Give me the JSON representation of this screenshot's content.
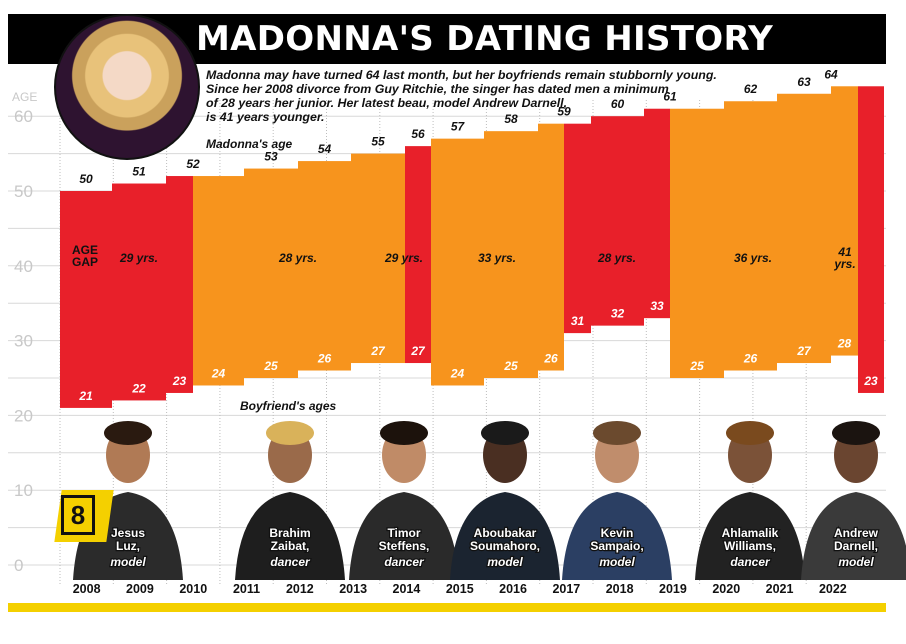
{
  "title": "MADONNA'S DATING HISTORY",
  "subtitle": "Madonna may have turned 64 last month, but her boyfriends remain stubbornly young.\nSince her 2008 divorce from Guy Ritchie, the singer has dated men a minimum\nof 28 years her junior. Her latest beau, model Andrew Darnell,\nis 41 years younger.",
  "badge_number": "8",
  "colors": {
    "red": "#e8202a",
    "orange": "#f7941d",
    "black": "#000000",
    "yellow": "#f4d000",
    "grid": "#d8d8d8"
  },
  "chart_data": {
    "type": "bar",
    "yaxis_label": "AGE",
    "yticks": [
      0,
      10,
      20,
      30,
      40,
      50,
      60
    ],
    "ylim": [
      0,
      65
    ],
    "years": [
      "2008",
      "2009",
      "2010",
      "2011",
      "2012",
      "2013",
      "2014",
      "2015",
      "2016",
      "2017",
      "2018",
      "2019",
      "2020",
      "2021",
      "2022"
    ],
    "madonna_label": "Madonna's age",
    "boyfriend_label": "Boyfriend's ages",
    "age_gap_label": "AGE\nGAP",
    "segments": [
      {
        "madonna_age": 50,
        "boyfriend_age": 21,
        "color": "red"
      },
      {
        "madonna_age": 51,
        "boyfriend_age": 22,
        "color": "red"
      },
      {
        "madonna_age": 52,
        "boyfriend_age": 23,
        "color": "red"
      },
      {
        "madonna_age": 52,
        "boyfriend_age": 24,
        "color": "orange"
      },
      {
        "madonna_age": 53,
        "boyfriend_age": 25,
        "color": "orange"
      },
      {
        "madonna_age": 54,
        "boyfriend_age": 26,
        "color": "orange"
      },
      {
        "madonna_age": 55,
        "boyfriend_age": 27,
        "color": "orange"
      },
      {
        "madonna_age": 56,
        "boyfriend_age": 27,
        "color": "red"
      },
      {
        "madonna_age": 57,
        "boyfriend_age": 24,
        "color": "orange"
      },
      {
        "madonna_age": 58,
        "boyfriend_age": 25,
        "color": "orange"
      },
      {
        "madonna_age": 59,
        "boyfriend_age": 26,
        "color": "orange"
      },
      {
        "madonna_age": 59,
        "boyfriend_age": 31,
        "color": "red"
      },
      {
        "madonna_age": 60,
        "boyfriend_age": 32,
        "color": "red"
      },
      {
        "madonna_age": 61,
        "boyfriend_age": 33,
        "color": "red"
      },
      {
        "madonna_age": 61,
        "boyfriend_age": 25,
        "color": "orange"
      },
      {
        "madonna_age": 62,
        "boyfriend_age": 26,
        "color": "orange"
      },
      {
        "madonna_age": 63,
        "boyfriend_age": 27,
        "color": "orange"
      },
      {
        "madonna_age": 64,
        "boyfriend_age": 28,
        "color": "orange"
      },
      {
        "madonna_age": 64,
        "boyfriend_age": 23,
        "color": "red"
      }
    ],
    "gap_labels": [
      "29 yrs.",
      "28 yrs.",
      "29 yrs.",
      "33 yrs.",
      "28 yrs.",
      "36 yrs.",
      "41\nyrs."
    ],
    "boyfriends": [
      {
        "name": "Jesus\nLuz,",
        "role": "model"
      },
      {
        "name": "Brahim\nZaibat,",
        "role": "dancer"
      },
      {
        "name": "Timor\nSteffens,",
        "role": "dancer"
      },
      {
        "name": "Aboubakar\nSoumahoro,",
        "role": "model"
      },
      {
        "name": "Kevin\nSampaio,",
        "role": "model"
      },
      {
        "name": "Ahlamalik\nWilliams,",
        "role": "dancer"
      },
      {
        "name": "Andrew\nDarnell,",
        "role": "model"
      }
    ]
  }
}
